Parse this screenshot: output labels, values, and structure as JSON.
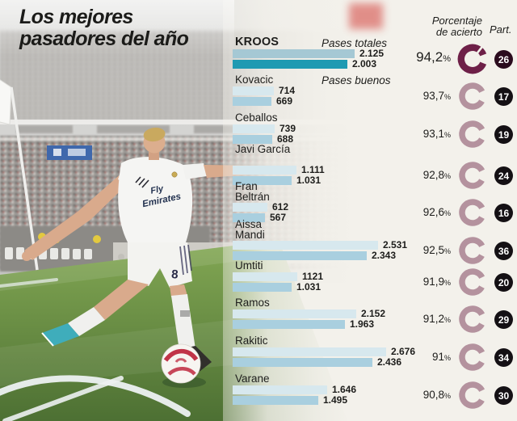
{
  "title": {
    "line1": "Los mejores",
    "line2": "pasadores del año"
  },
  "headers": {
    "accuracy_line1": "Porcentaje",
    "accuracy_line2": "de acierto",
    "appearances": "Part."
  },
  "legend": {
    "total": "Pases totales",
    "good": "Pases buenos"
  },
  "photo": {
    "jersey_line1": "Fly",
    "jersey_line2": "Emirates",
    "shorts_number": "8"
  },
  "chart_data": {
    "type": "bar",
    "orientation": "horizontal",
    "series": [
      {
        "name": "Pases totales"
      },
      {
        "name": "Pases buenos"
      }
    ],
    "xmax": 2676,
    "colors": {
      "bar_total": "#d7e8ee",
      "bar_good": "#a9cfdf",
      "bar_total_highlight": "#a5c8d4",
      "bar_good_highlight": "#1f9ab2",
      "ring": "#b4929e",
      "ring_highlight": "#6e2048",
      "badge": "#141014",
      "badge_highlight": "#2b0c1e",
      "text": "#1d1d1b"
    },
    "players": [
      {
        "name": "KROOS",
        "pases_totales": 2125,
        "pases_totales_label": "2.125",
        "pases_buenos": 2003,
        "pases_buenos_label": "2.003",
        "porcentaje": "94,2%",
        "partidos": "26",
        "highlight": true
      },
      {
        "name": "Kovacic",
        "pases_totales": 714,
        "pases_totales_label": "714",
        "pases_buenos": 669,
        "pases_buenos_label": "669",
        "porcentaje": "93,7%",
        "partidos": "17"
      },
      {
        "name": "Ceballos",
        "pases_totales": 739,
        "pases_totales_label": "739",
        "pases_buenos": 688,
        "pases_buenos_label": "688",
        "porcentaje": "93,1%",
        "partidos": "19"
      },
      {
        "name": "Javi García",
        "pases_totales": 1111,
        "pases_totales_label": "1.111",
        "pases_buenos": 1031,
        "pases_buenos_label": "1.031",
        "porcentaje": "92,8%",
        "partidos": "24"
      },
      {
        "name": "Fran Beltrán",
        "pases_totales": 612,
        "pases_totales_label": "612",
        "pases_buenos": 567,
        "pases_buenos_label": "567",
        "porcentaje": "92,6%",
        "partidos": "16"
      },
      {
        "name": "Aissa Mandi",
        "pases_totales": 2531,
        "pases_totales_label": "2.531",
        "pases_buenos": 2343,
        "pases_buenos_label": "2.343",
        "porcentaje": "92,5%",
        "partidos": "36"
      },
      {
        "name": "Umtiti",
        "pases_totales": 1121,
        "pases_totales_label": "1121",
        "pases_buenos": 1031,
        "pases_buenos_label": "1.031",
        "porcentaje": "91,9%",
        "partidos": "20"
      },
      {
        "name": "Ramos",
        "pases_totales": 2152,
        "pases_totales_label": "2.152",
        "pases_buenos": 1963,
        "pases_buenos_label": "1.963",
        "porcentaje": "91,2%",
        "partidos": "29"
      },
      {
        "name": "Rakitic",
        "pases_totales": 2676,
        "pases_totales_label": "2.676",
        "pases_buenos": 2436,
        "pases_buenos_label": "2.436",
        "porcentaje": "91%",
        "partidos": "34"
      },
      {
        "name": "Varane",
        "pases_totales": 1646,
        "pases_totales_label": "1.646",
        "pases_buenos": 1495,
        "pases_buenos_label": "1.495",
        "porcentaje": "90,8%",
        "partidos": "30"
      }
    ]
  }
}
